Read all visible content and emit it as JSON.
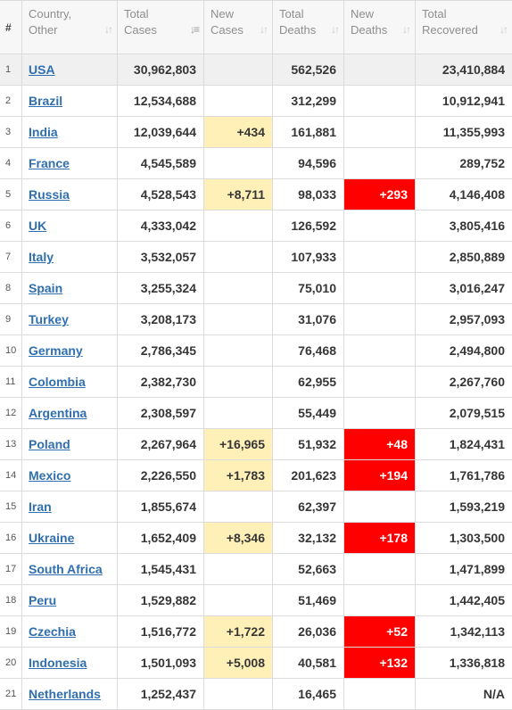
{
  "headers": {
    "index": "#",
    "country": [
      "Country,",
      "Other"
    ],
    "total_cases": [
      "Total",
      "Cases"
    ],
    "new_cases": [
      "New",
      "Cases"
    ],
    "total_deaths": [
      "Total",
      "Deaths"
    ],
    "new_deaths": [
      "New",
      "Deaths"
    ],
    "total_recovered": [
      "Total",
      "Recovered"
    ]
  },
  "colors": {
    "new_cases_highlight": "#fff0b8",
    "new_deaths_highlight": "#ff0000",
    "link": "#2f6fb0"
  },
  "rows": [
    {
      "index": "1",
      "country": "USA",
      "total_cases": "30,962,803",
      "new_cases": "",
      "total_deaths": "562,526",
      "new_deaths": "",
      "total_recovered": "23,410,884"
    },
    {
      "index": "2",
      "country": "Brazil",
      "total_cases": "12,534,688",
      "new_cases": "",
      "total_deaths": "312,299",
      "new_deaths": "",
      "total_recovered": "10,912,941"
    },
    {
      "index": "3",
      "country": "India",
      "total_cases": "12,039,644",
      "new_cases": "+434",
      "total_deaths": "161,881",
      "new_deaths": "",
      "total_recovered": "11,355,993"
    },
    {
      "index": "4",
      "country": "France",
      "total_cases": "4,545,589",
      "new_cases": "",
      "total_deaths": "94,596",
      "new_deaths": "",
      "total_recovered": "289,752"
    },
    {
      "index": "5",
      "country": "Russia",
      "total_cases": "4,528,543",
      "new_cases": "+8,711",
      "total_deaths": "98,033",
      "new_deaths": "+293",
      "total_recovered": "4,146,408"
    },
    {
      "index": "6",
      "country": "UK",
      "total_cases": "4,333,042",
      "new_cases": "",
      "total_deaths": "126,592",
      "new_deaths": "",
      "total_recovered": "3,805,416"
    },
    {
      "index": "7",
      "country": "Italy",
      "total_cases": "3,532,057",
      "new_cases": "",
      "total_deaths": "107,933",
      "new_deaths": "",
      "total_recovered": "2,850,889"
    },
    {
      "index": "8",
      "country": "Spain",
      "total_cases": "3,255,324",
      "new_cases": "",
      "total_deaths": "75,010",
      "new_deaths": "",
      "total_recovered": "3,016,247"
    },
    {
      "index": "9",
      "country": "Turkey",
      "total_cases": "3,208,173",
      "new_cases": "",
      "total_deaths": "31,076",
      "new_deaths": "",
      "total_recovered": "2,957,093"
    },
    {
      "index": "10",
      "country": "Germany",
      "total_cases": "2,786,345",
      "new_cases": "",
      "total_deaths": "76,468",
      "new_deaths": "",
      "total_recovered": "2,494,800"
    },
    {
      "index": "11",
      "country": "Colombia",
      "total_cases": "2,382,730",
      "new_cases": "",
      "total_deaths": "62,955",
      "new_deaths": "",
      "total_recovered": "2,267,760"
    },
    {
      "index": "12",
      "country": "Argentina",
      "total_cases": "2,308,597",
      "new_cases": "",
      "total_deaths": "55,449",
      "new_deaths": "",
      "total_recovered": "2,079,515"
    },
    {
      "index": "13",
      "country": "Poland",
      "total_cases": "2,267,964",
      "new_cases": "+16,965",
      "total_deaths": "51,932",
      "new_deaths": "+48",
      "total_recovered": "1,824,431"
    },
    {
      "index": "14",
      "country": "Mexico",
      "total_cases": "2,226,550",
      "new_cases": "+1,783",
      "total_deaths": "201,623",
      "new_deaths": "+194",
      "total_recovered": "1,761,786"
    },
    {
      "index": "15",
      "country": "Iran",
      "total_cases": "1,855,674",
      "new_cases": "",
      "total_deaths": "62,397",
      "new_deaths": "",
      "total_recovered": "1,593,219"
    },
    {
      "index": "16",
      "country": "Ukraine",
      "total_cases": "1,652,409",
      "new_cases": "+8,346",
      "total_deaths": "32,132",
      "new_deaths": "+178",
      "total_recovered": "1,303,500"
    },
    {
      "index": "17",
      "country": "South Africa",
      "total_cases": "1,545,431",
      "new_cases": "",
      "total_deaths": "52,663",
      "new_deaths": "",
      "total_recovered": "1,471,899"
    },
    {
      "index": "18",
      "country": "Peru",
      "total_cases": "1,529,882",
      "new_cases": "",
      "total_deaths": "51,469",
      "new_deaths": "",
      "total_recovered": "1,442,405"
    },
    {
      "index": "19",
      "country": "Czechia",
      "total_cases": "1,516,772",
      "new_cases": "+1,722",
      "total_deaths": "26,036",
      "new_deaths": "+52",
      "total_recovered": "1,342,113"
    },
    {
      "index": "20",
      "country": "Indonesia",
      "total_cases": "1,501,093",
      "new_cases": "+5,008",
      "total_deaths": "40,581",
      "new_deaths": "+132",
      "total_recovered": "1,336,818"
    },
    {
      "index": "21",
      "country": "Netherlands",
      "total_cases": "1,252,437",
      "new_cases": "",
      "total_deaths": "16,465",
      "new_deaths": "",
      "total_recovered": "N/A"
    }
  ]
}
